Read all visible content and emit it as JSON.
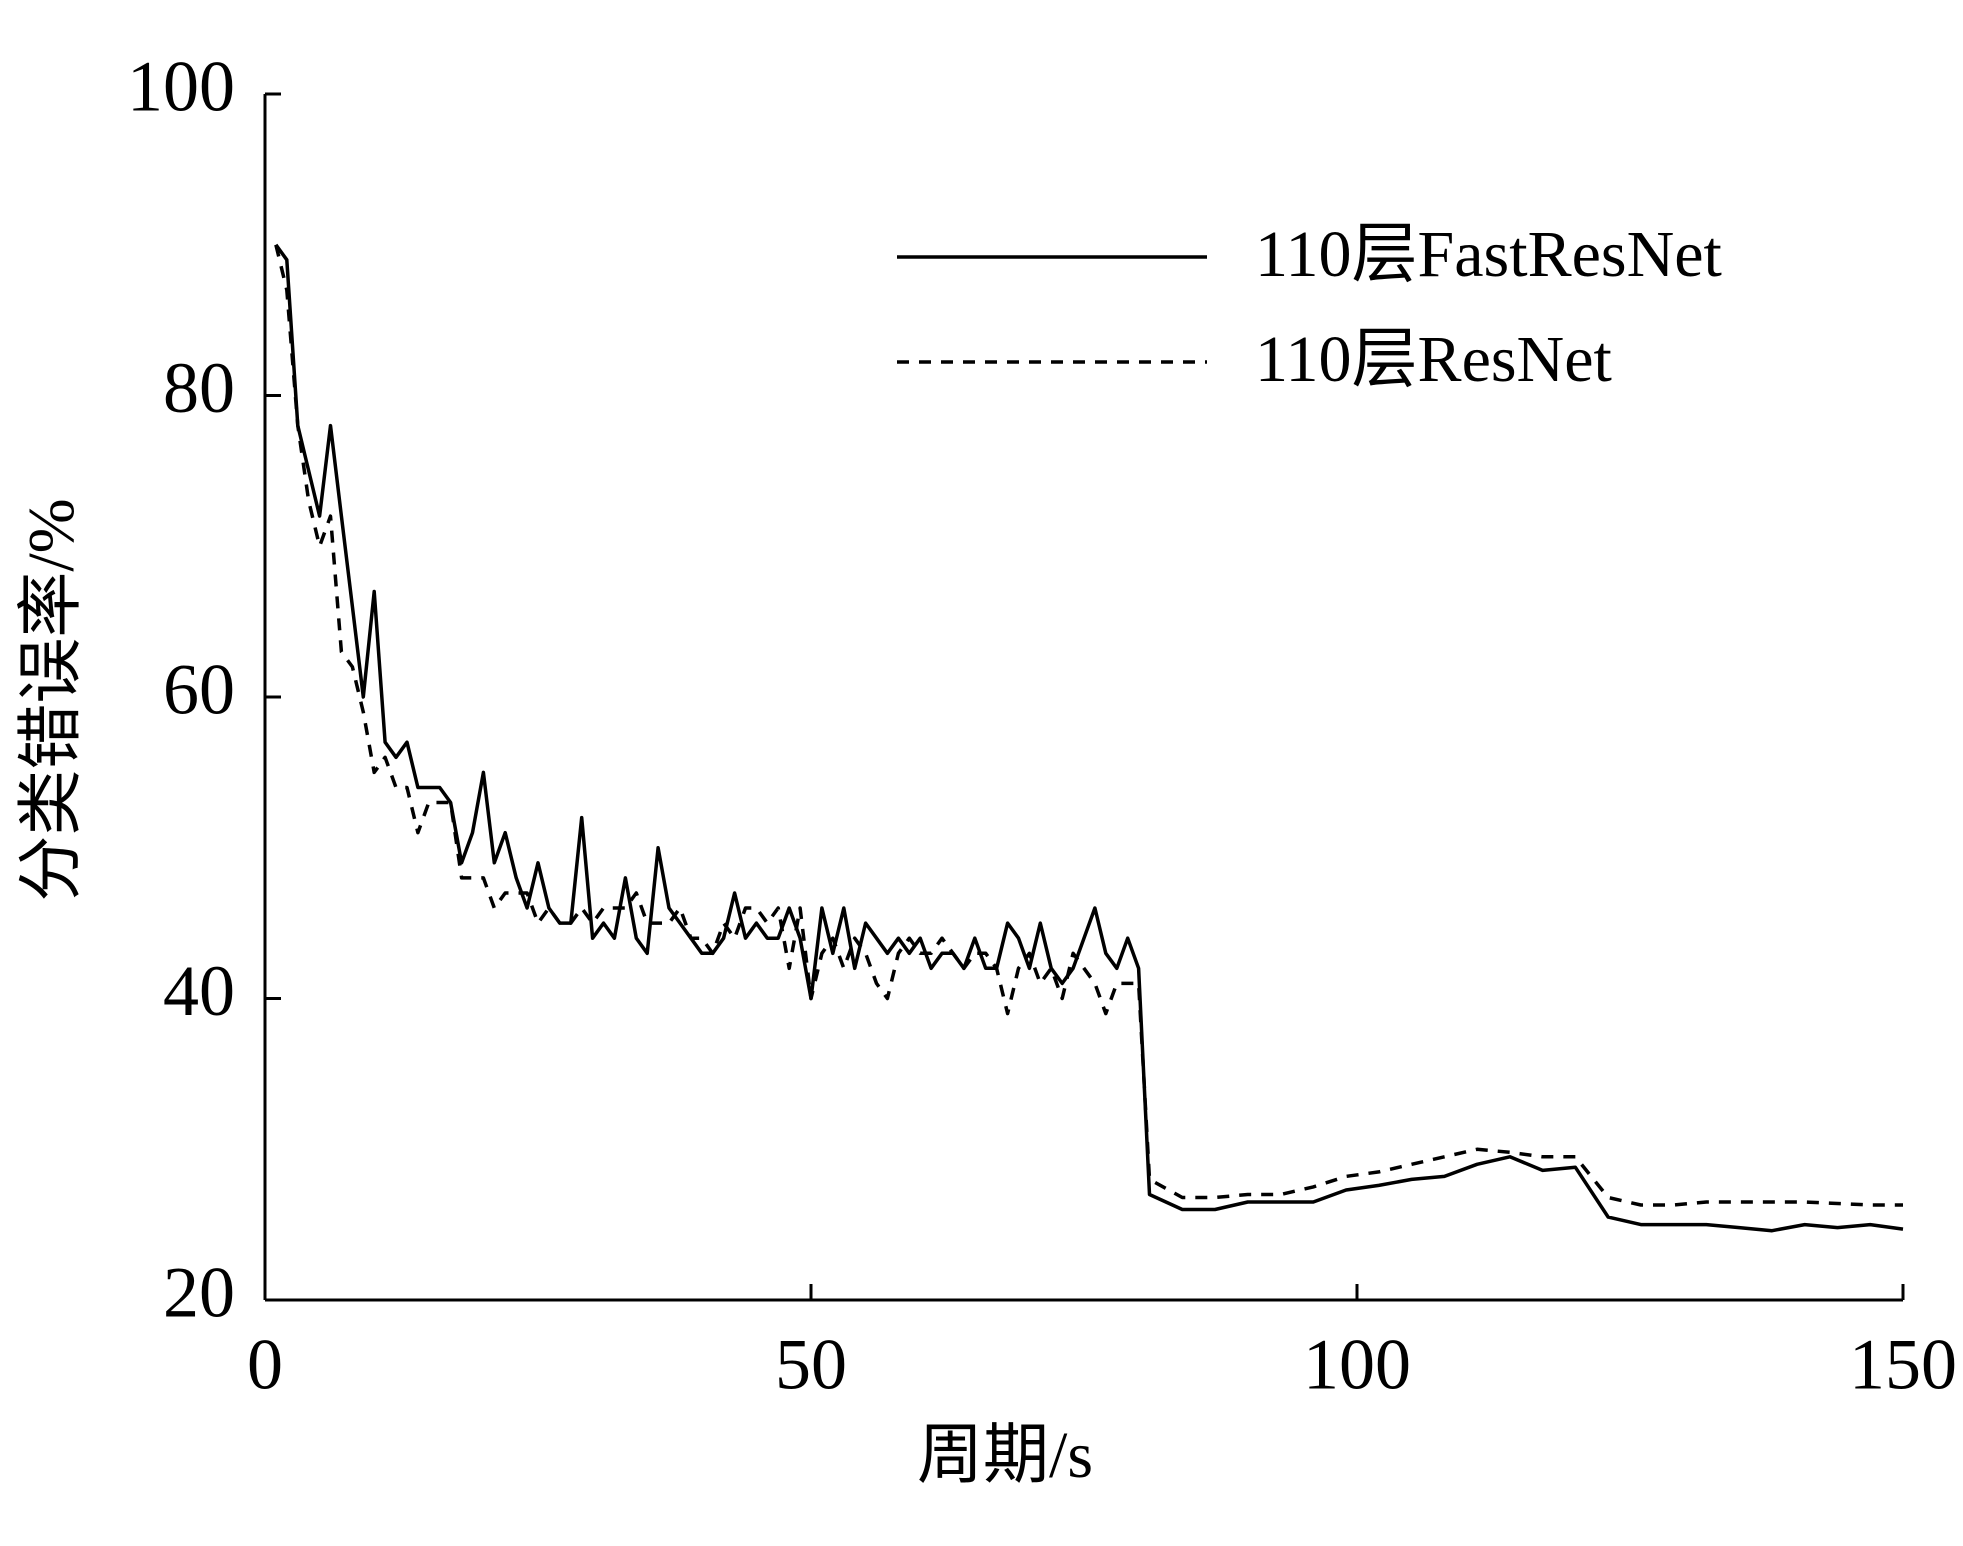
{
  "chart_data": {
    "type": "line",
    "x_label": "周期/s",
    "y_label": "分类错误率/%",
    "xlim": [
      0,
      150
    ],
    "xticks": [
      0,
      50,
      100,
      150
    ],
    "ylim": [
      20,
      100
    ],
    "yticks": [
      20,
      40,
      60,
      80,
      100
    ],
    "legend": "top-right",
    "x": [
      1,
      2,
      3,
      4,
      5,
      6,
      7,
      8,
      9,
      10,
      11,
      12,
      13,
      14,
      15,
      16,
      17,
      18,
      19,
      20,
      21,
      22,
      23,
      24,
      25,
      26,
      27,
      28,
      29,
      30,
      31,
      32,
      33,
      34,
      35,
      36,
      37,
      38,
      39,
      40,
      41,
      42,
      43,
      44,
      45,
      46,
      47,
      48,
      49,
      50,
      51,
      52,
      53,
      54,
      55,
      56,
      57,
      58,
      59,
      60,
      61,
      62,
      63,
      64,
      65,
      66,
      67,
      68,
      69,
      70,
      71,
      72,
      73,
      74,
      75,
      76,
      77,
      78,
      79,
      80,
      81,
      84,
      87,
      90,
      93,
      96,
      99,
      102,
      105,
      108,
      111,
      114,
      117,
      120,
      123,
      126,
      129,
      132,
      135,
      138,
      141,
      144,
      147,
      150
    ],
    "series": [
      {
        "name": "110层FastResNet",
        "color": "#000000",
        "line_style": "solid",
        "values": [
          90,
          89,
          78,
          75,
          72,
          78,
          72,
          66,
          60,
          67,
          57,
          56,
          57,
          54,
          54,
          54,
          53,
          49,
          51,
          55,
          49,
          51,
          48,
          46,
          49,
          46,
          45,
          45,
          52,
          44,
          45,
          44,
          48,
          44,
          43,
          50,
          46,
          45,
          44,
          43,
          43,
          44,
          47,
          44,
          45,
          44,
          44,
          46,
          44,
          40,
          46,
          43,
          46,
          42,
          45,
          44,
          43,
          44,
          43,
          44,
          42,
          43,
          43,
          42,
          44,
          42,
          42,
          45,
          44,
          42,
          45,
          42,
          41,
          42,
          44,
          46,
          43,
          42,
          44,
          42,
          27,
          26,
          26,
          26.5,
          26.5,
          26.5,
          27.3,
          27.6,
          28,
          28.2,
          29,
          29.5,
          28.6,
          28.8,
          25.5,
          25,
          25,
          25,
          24.8,
          24.6,
          25,
          24.8,
          25,
          24.7
        ]
      },
      {
        "name": "110层ResNet",
        "color": "#000000",
        "line_style": "dashed",
        "values": [
          90,
          87,
          78,
          73,
          70,
          72,
          63,
          62,
          59,
          55,
          56,
          54,
          54,
          51,
          53,
          53,
          53,
          48,
          48,
          48,
          46,
          47,
          47,
          47,
          45,
          46,
          45,
          45,
          46,
          45,
          46,
          46,
          46,
          47,
          45,
          45,
          45,
          46,
          44,
          44,
          43,
          45,
          44,
          46,
          46,
          45,
          46,
          42,
          46,
          40,
          43,
          44,
          42,
          44,
          43,
          41,
          40,
          43,
          44,
          43,
          43,
          44,
          43,
          42,
          43,
          43,
          42,
          39,
          42,
          43,
          41,
          42,
          40,
          43,
          42,
          41,
          39,
          41,
          41,
          41,
          28,
          26.8,
          26.8,
          27,
          27,
          27.5,
          28.2,
          28.5,
          29,
          29.5,
          30,
          29.8,
          29.5,
          29.5,
          26.8,
          26.3,
          26.3,
          26.5,
          26.5,
          26.5,
          26.5,
          26.4,
          26.3,
          26.3
        ]
      }
    ]
  }
}
